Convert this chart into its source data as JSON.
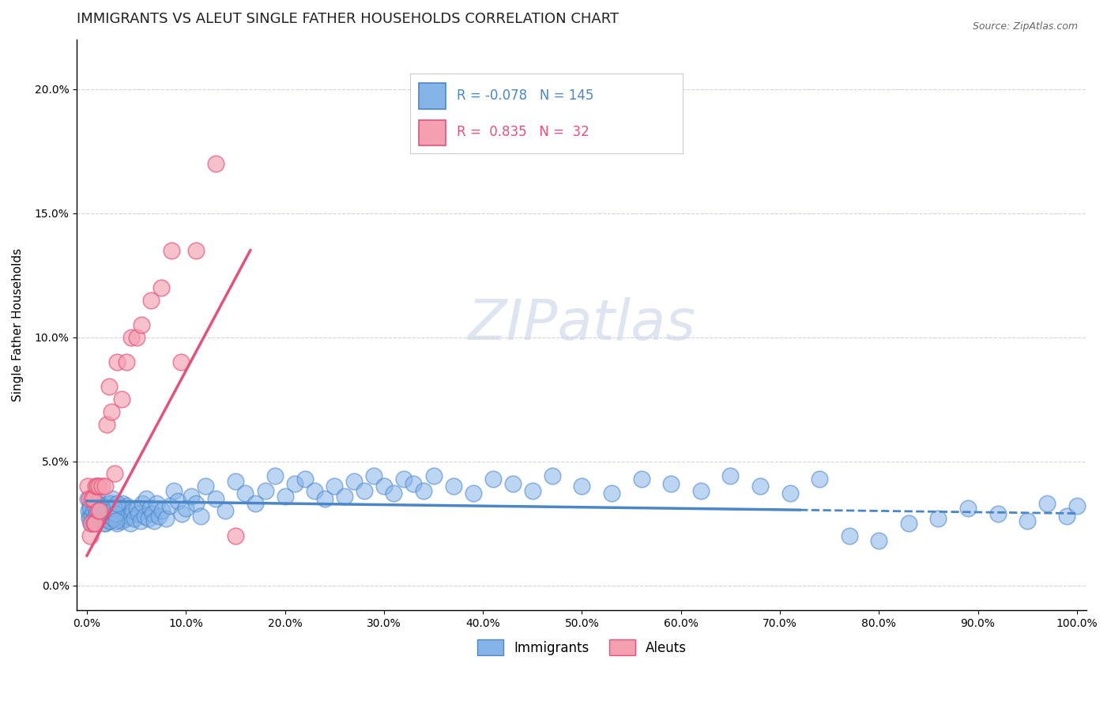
{
  "title": "IMMIGRANTS VS ALEUT SINGLE FATHER HOUSEHOLDS CORRELATION CHART",
  "source_text": "Source: ZipAtlas.com",
  "ylabel": "Single Father Households",
  "xlim": [
    -0.01,
    1.01
  ],
  "ylim": [
    -0.01,
    0.22
  ],
  "x_ticks": [
    0.0,
    0.1,
    0.2,
    0.3,
    0.4,
    0.5,
    0.6,
    0.7,
    0.8,
    0.9,
    1.0
  ],
  "x_tick_labels": [
    "0.0%",
    "10.0%",
    "20.0%",
    "30.0%",
    "40.0%",
    "50.0%",
    "60.0%",
    "70.0%",
    "80.0%",
    "90.0%",
    "100.0%"
  ],
  "y_ticks": [
    0.0,
    0.05,
    0.1,
    0.15,
    0.2
  ],
  "y_tick_labels": [
    "0.0%",
    "5.0%",
    "10.0%",
    "15.0%",
    "20.0%"
  ],
  "legend_r_blue": "-0.078",
  "legend_n_blue": "145",
  "legend_r_pink": "0.835",
  "legend_n_pink": "32",
  "blue_color": "#85b4e8",
  "pink_color": "#f4a0b0",
  "blue_line_color": "#4a86c8",
  "pink_line_color": "#e8507a",
  "grid_color": "#c8c8d8",
  "background_color": "#ffffff",
  "watermark_text": "ZIPatlas",
  "watermark_color": "#c8d4e8",
  "immigrants_x": [
    0.001,
    0.002,
    0.003,
    0.004,
    0.005,
    0.006,
    0.007,
    0.008,
    0.009,
    0.01,
    0.011,
    0.012,
    0.013,
    0.014,
    0.015,
    0.016,
    0.017,
    0.018,
    0.019,
    0.02,
    0.021,
    0.022,
    0.023,
    0.024,
    0.025,
    0.026,
    0.027,
    0.028,
    0.029,
    0.03,
    0.031,
    0.032,
    0.033,
    0.034,
    0.035,
    0.036,
    0.037,
    0.038,
    0.039,
    0.04,
    0.042,
    0.044,
    0.046,
    0.048,
    0.05,
    0.052,
    0.054,
    0.056,
    0.058,
    0.06,
    0.062,
    0.064,
    0.066,
    0.068,
    0.07,
    0.073,
    0.076,
    0.08,
    0.084,
    0.088,
    0.092,
    0.096,
    0.1,
    0.105,
    0.11,
    0.115,
    0.12,
    0.13,
    0.14,
    0.15,
    0.16,
    0.17,
    0.18,
    0.19,
    0.2,
    0.21,
    0.22,
    0.23,
    0.24,
    0.25,
    0.26,
    0.27,
    0.28,
    0.29,
    0.3,
    0.31,
    0.32,
    0.33,
    0.34,
    0.35,
    0.37,
    0.39,
    0.41,
    0.43,
    0.45,
    0.47,
    0.5,
    0.53,
    0.56,
    0.59,
    0.62,
    0.65,
    0.68,
    0.71,
    0.74,
    0.77,
    0.8,
    0.83,
    0.86,
    0.89,
    0.92,
    0.95,
    0.97,
    0.99,
    1.0,
    0.0015,
    0.0025,
    0.0035,
    0.0045,
    0.0055,
    0.0065,
    0.0075,
    0.0085,
    0.0095,
    0.0105,
    0.0115,
    0.0125,
    0.0135,
    0.0145,
    0.0155,
    0.0165,
    0.0175,
    0.0185,
    0.0195,
    0.0205,
    0.0215,
    0.0225,
    0.0235,
    0.0245,
    0.0255,
    0.0265,
    0.0275,
    0.0285,
    0.0295,
    0.0305
  ],
  "immigrants_y": [
    0.035,
    0.028,
    0.032,
    0.025,
    0.03,
    0.027,
    0.033,
    0.031,
    0.029,
    0.026,
    0.034,
    0.028,
    0.031,
    0.03,
    0.027,
    0.032,
    0.028,
    0.025,
    0.03,
    0.027,
    0.031,
    0.029,
    0.026,
    0.033,
    0.028,
    0.03,
    0.027,
    0.032,
    0.028,
    0.025,
    0.03,
    0.027,
    0.031,
    0.029,
    0.026,
    0.033,
    0.028,
    0.03,
    0.027,
    0.032,
    0.028,
    0.025,
    0.03,
    0.027,
    0.031,
    0.029,
    0.026,
    0.033,
    0.028,
    0.035,
    0.027,
    0.031,
    0.029,
    0.026,
    0.033,
    0.028,
    0.03,
    0.027,
    0.032,
    0.038,
    0.034,
    0.029,
    0.031,
    0.036,
    0.033,
    0.028,
    0.04,
    0.035,
    0.03,
    0.042,
    0.037,
    0.033,
    0.038,
    0.044,
    0.036,
    0.041,
    0.043,
    0.038,
    0.035,
    0.04,
    0.036,
    0.042,
    0.038,
    0.044,
    0.04,
    0.037,
    0.043,
    0.041,
    0.038,
    0.044,
    0.04,
    0.037,
    0.043,
    0.041,
    0.038,
    0.044,
    0.04,
    0.037,
    0.043,
    0.041,
    0.038,
    0.044,
    0.04,
    0.037,
    0.043,
    0.02,
    0.018,
    0.025,
    0.027,
    0.031,
    0.029,
    0.026,
    0.033,
    0.028,
    0.032,
    0.03,
    0.027,
    0.031,
    0.028,
    0.025,
    0.03,
    0.027,
    0.031,
    0.029,
    0.026,
    0.033,
    0.028,
    0.03,
    0.027,
    0.032,
    0.028,
    0.025,
    0.03,
    0.027,
    0.031,
    0.029,
    0.026,
    0.033,
    0.028,
    0.035,
    0.027,
    0.031,
    0.029,
    0.026,
    0.033
  ],
  "aleuts_x": [
    0.001,
    0.002,
    0.003,
    0.004,
    0.005,
    0.006,
    0.007,
    0.008,
    0.009,
    0.01,
    0.011,
    0.012,
    0.013,
    0.015,
    0.018,
    0.02,
    0.022,
    0.025,
    0.028,
    0.03,
    0.035,
    0.04,
    0.045,
    0.05,
    0.055,
    0.065,
    0.075,
    0.085,
    0.095,
    0.11,
    0.13,
    0.15
  ],
  "aleuts_y": [
    0.04,
    0.035,
    0.02,
    0.025,
    0.035,
    0.035,
    0.025,
    0.025,
    0.04,
    0.04,
    0.03,
    0.04,
    0.03,
    0.04,
    0.04,
    0.065,
    0.08,
    0.07,
    0.045,
    0.09,
    0.075,
    0.09,
    0.1,
    0.1,
    0.105,
    0.115,
    0.12,
    0.135,
    0.09,
    0.135,
    0.17,
    0.02
  ],
  "title_fontsize": 13,
  "axis_label_fontsize": 11,
  "tick_fontsize": 10,
  "legend_fontsize": 12
}
